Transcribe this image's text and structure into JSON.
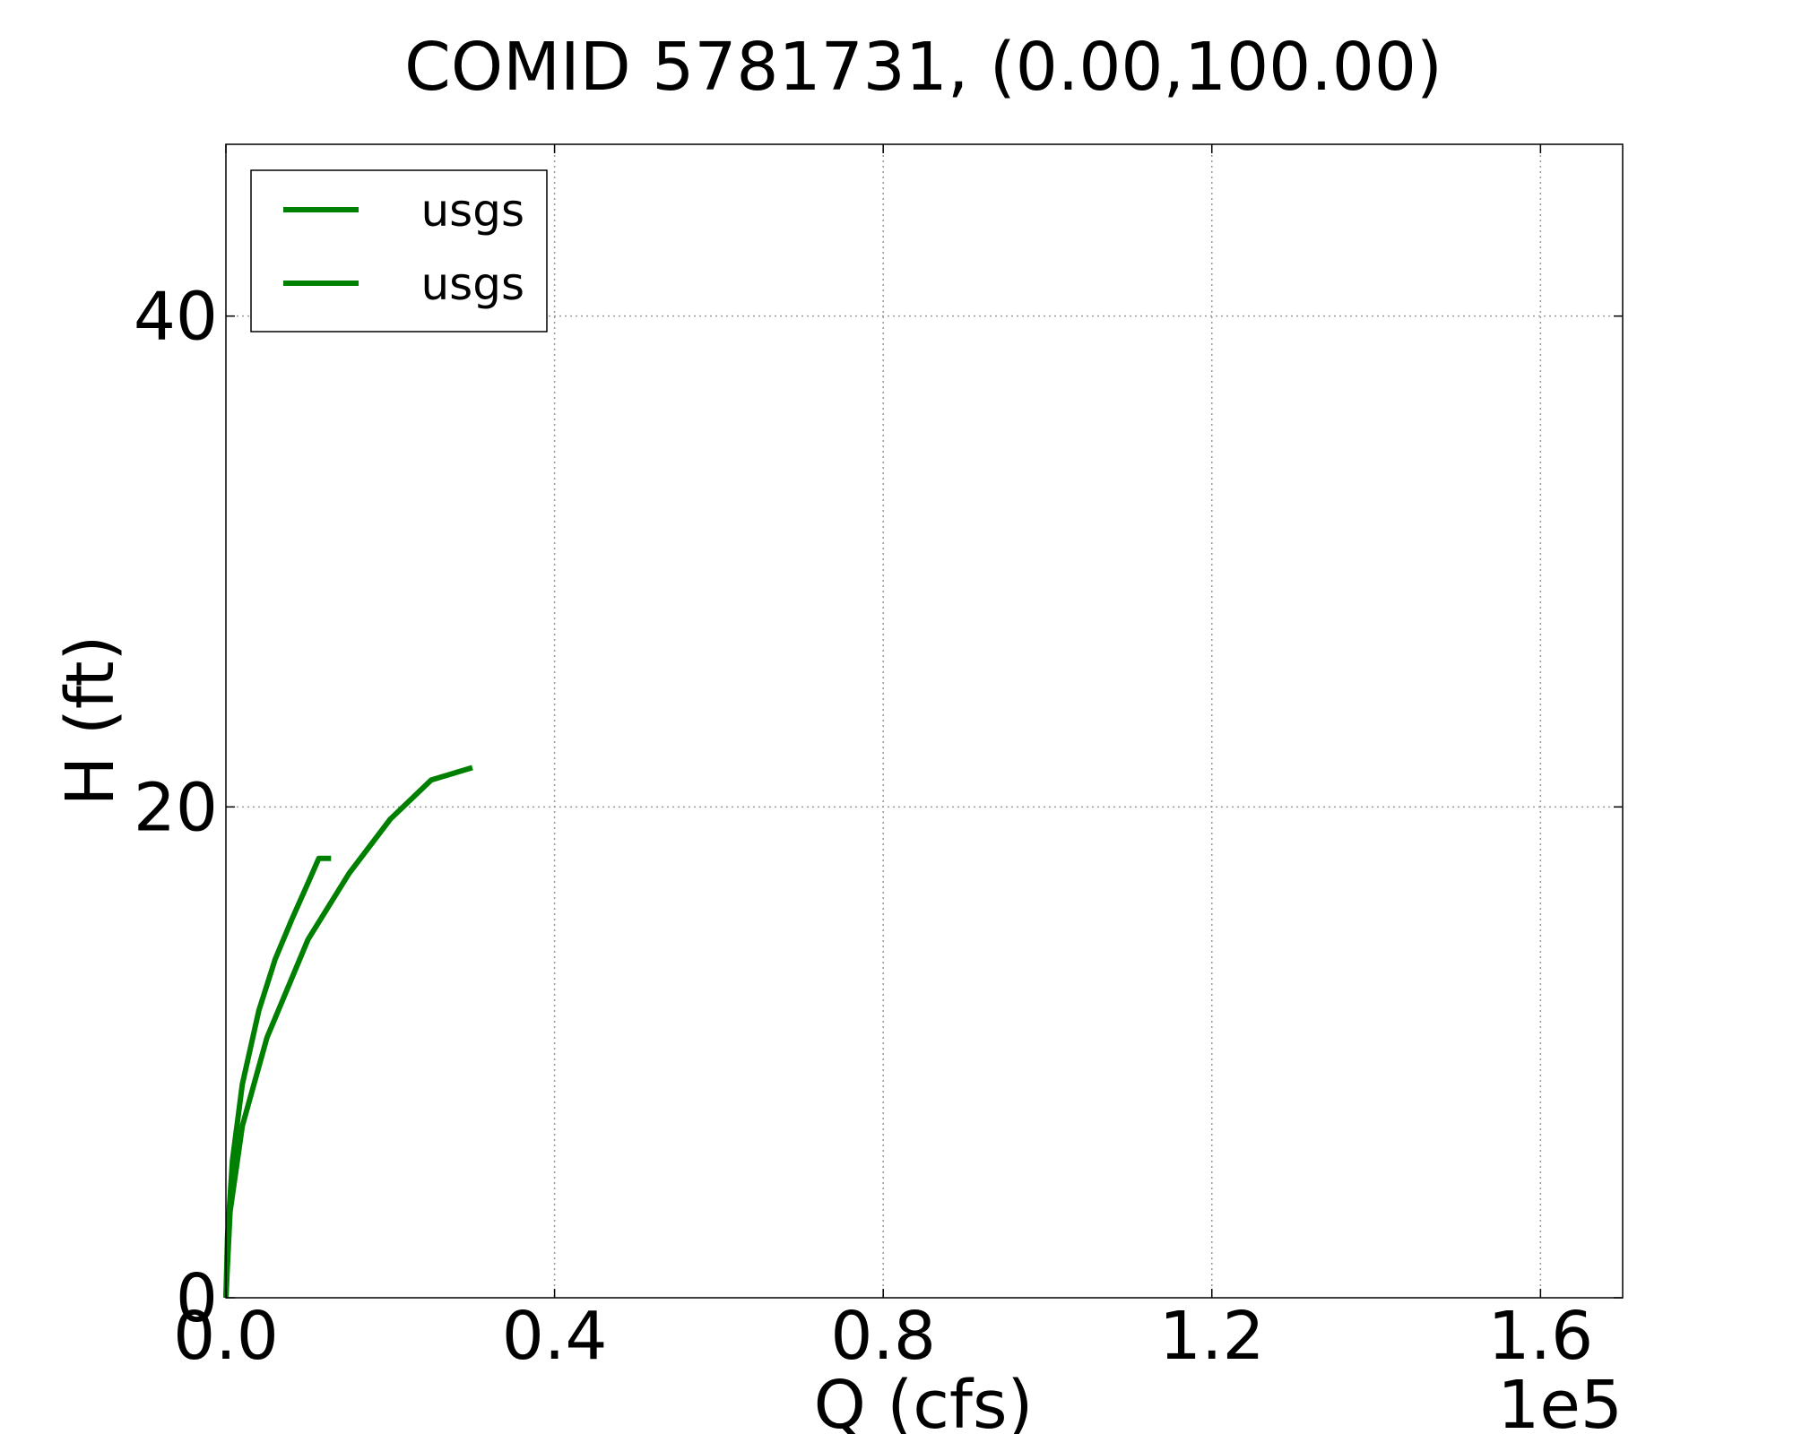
{
  "chart_data": {
    "type": "line",
    "title": "COMID 5781731, (0.00,100.00)",
    "xlabel": "Q (cfs)",
    "ylabel": "H (ft)",
    "x_offset_text": "1e5",
    "xlim": [
      0,
      1.7
    ],
    "ylim": [
      0,
      47
    ],
    "xticks": [
      {
        "value": 0.0,
        "label": "0.0"
      },
      {
        "value": 0.4,
        "label": "0.4"
      },
      {
        "value": 0.8,
        "label": "0.8"
      },
      {
        "value": 1.2,
        "label": "1.2"
      },
      {
        "value": 1.6,
        "label": "1.6"
      }
    ],
    "yticks": [
      {
        "value": 0,
        "label": "0"
      },
      {
        "value": 20,
        "label": "20"
      },
      {
        "value": 40,
        "label": "40"
      }
    ],
    "grid": true,
    "legend_position": "top-left",
    "series": [
      {
        "name": "usgs",
        "color": "#008000",
        "x": [
          0.0,
          0.002,
          0.008,
          0.02,
          0.04,
          0.06,
          0.08,
          0.1,
          0.113,
          0.128
        ],
        "y": [
          0.0,
          2.5,
          5.6,
          8.7,
          11.7,
          13.8,
          15.4,
          16.9,
          17.9,
          17.9
        ]
      },
      {
        "name": "usgs",
        "color": "#008000",
        "x": [
          0.0,
          0.005,
          0.02,
          0.05,
          0.1,
          0.15,
          0.2,
          0.25,
          0.3
        ],
        "y": [
          0.0,
          3.5,
          7.0,
          10.6,
          14.6,
          17.3,
          19.5,
          21.1,
          21.6
        ]
      }
    ]
  }
}
